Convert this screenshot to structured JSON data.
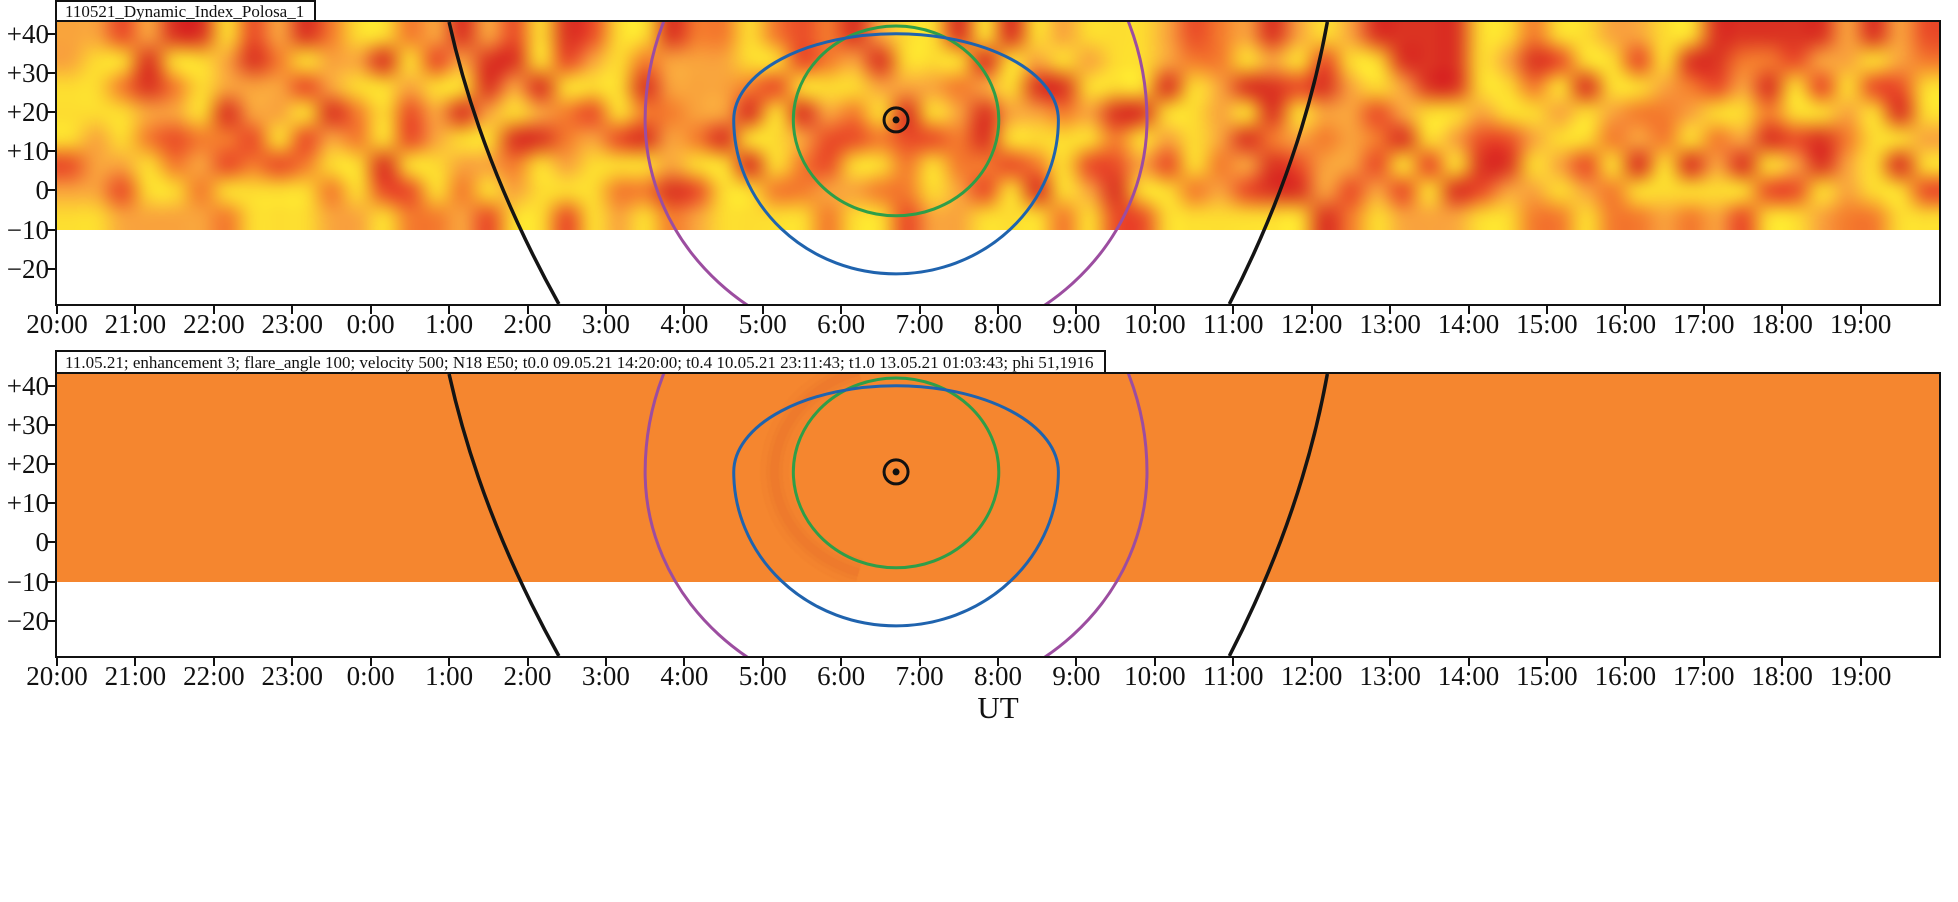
{
  "figure": {
    "panels": [
      {
        "id": "observed",
        "title": "110521_Dynamic_Index_Polosa_1"
      },
      {
        "id": "model",
        "title": "11.05.21; enhancement 3; flare_angle 100; velocity 500; N18 E50; t0.0 09.05.21 14:20:00; t0.4 10.05.21 23:11:43; t1.0 13.05.21 01:03:43; phi 51,1916"
      }
    ],
    "x_axis": {
      "label": "UT",
      "tick_labels": [
        "20:00",
        "21:00",
        "22:00",
        "23:00",
        "0:00",
        "1:00",
        "2:00",
        "3:00",
        "4:00",
        "5:00",
        "6:00",
        "7:00",
        "8:00",
        "9:00",
        "10:00",
        "11:00",
        "12:00",
        "13:00",
        "14:00",
        "15:00",
        "16:00",
        "17:00",
        "18:00",
        "19:00"
      ]
    },
    "y_axis": {
      "tick_labels": [
        "+40",
        "+30",
        "+20",
        "+10",
        "0",
        "−10",
        "−20"
      ],
      "tick_values": [
        40,
        30,
        20,
        10,
        0,
        -10,
        -20
      ]
    }
  },
  "chart_data": [
    {
      "type": "heatmap",
      "title": "110521_Dynamic_Index_Polosa_1",
      "xlabel": "UT",
      "x_ticks": [
        "20:00",
        "21:00",
        "22:00",
        "23:00",
        "0:00",
        "1:00",
        "2:00",
        "3:00",
        "4:00",
        "5:00",
        "6:00",
        "7:00",
        "8:00",
        "9:00",
        "10:00",
        "11:00",
        "12:00",
        "13:00",
        "14:00",
        "15:00",
        "16:00",
        "17:00",
        "18:00",
        "19:00"
      ],
      "x_span_hours": 24,
      "y_ticks": [
        40,
        30,
        20,
        10,
        0,
        -10,
        -20
      ],
      "y_range": [
        -29,
        43
      ],
      "colored_band_lat_range": [
        -10,
        43
      ],
      "values_note": "Mottled observed dynamic-index field; qualitative yellow→orange→red intensity, no colorbar shown; white below latitude −10",
      "palette": [
        "#FDDD30",
        "#F9A43C",
        "#F47B2D",
        "#EA4C28",
        "#DB3322"
      ],
      "overlays": {
        "center": {
          "hours_after_2000UT": 10.7,
          "ut": "6:40",
          "lat_deg": 18
        },
        "sun_symbol": {
          "outer_radius_px": 12,
          "dot_radius_px": 3.5
        },
        "rings": [
          {
            "name": "inner-ring-green",
            "color": "#2E9E49",
            "half_width_hours": 1.31,
            "half_height_up_deg": 24.0,
            "half_height_down_deg": 24.5
          },
          {
            "name": "middle-ring-blue",
            "color": "#1F63AE",
            "half_width_hours": 2.07,
            "half_height_up_deg": 22.0,
            "half_height_down_deg": 39.3
          },
          {
            "name": "outer-ring-purple",
            "color": "#9C4DA0",
            "half_width_hours": 3.2,
            "half_height_up_deg": 66.4,
            "half_height_down_deg": 58.7
          }
        ],
        "terminators": [
          {
            "name": "morning-terminator",
            "color": "#141414",
            "hours_top": 5.0,
            "hours_bottom": 6.4,
            "bow_hours": -0.3,
            "ut_at_top": "1:00",
            "ut_at_bottom": "2:25"
          },
          {
            "name": "evening-terminator",
            "color": "#141414",
            "hours_top": 16.2,
            "hours_bottom": 14.95,
            "bow_hours": 0.3,
            "ut_at_top": "12:10",
            "ut_at_bottom": "11:00"
          }
        ]
      },
      "render": {
        "seed": 1105,
        "cols": 72,
        "rows": 8,
        "thresholds": [
          [
            0.42,
            "#FDDD30"
          ],
          [
            0.6,
            "#F9A43C"
          ],
          [
            0.74,
            "#F47B2D"
          ],
          [
            0.86,
            "#EA4C28"
          ],
          [
            1.01,
            "#DB3322"
          ]
        ],
        "row_bias": [
          0.02,
          0.03,
          0.03,
          0.02,
          0,
          -0.02,
          -0.05,
          -0.08
        ],
        "hot_spots": [
          {
            "col": 33.5,
            "row": 2.5,
            "sig_col": 5.0,
            "sig_row": 3.0,
            "amp": 0.13
          },
          {
            "col": 65.5,
            "row": 0.8,
            "sig_col": 2.2,
            "sig_row": 1.4,
            "amp": 0.33
          },
          {
            "col": 47.0,
            "row": 1.0,
            "sig_col": 1.6,
            "sig_row": 1.1,
            "amp": 0.12
          },
          {
            "col": 7.0,
            "row": 1.5,
            "sig_col": 2.5,
            "sig_row": 1.5,
            "amp": 0.1
          },
          {
            "col": 56.0,
            "row": 5.0,
            "sig_col": 2.0,
            "sig_row": 1.3,
            "amp": 0.1
          },
          {
            "col": 27.0,
            "row": 5.5,
            "sig_col": 2.0,
            "sig_row": 1.2,
            "amp": 0.08
          },
          {
            "col": 20.0,
            "row": 6.5,
            "sig_col": 3.0,
            "sig_row": 1.2,
            "amp": -0.06
          }
        ]
      }
    },
    {
      "type": "heatmap",
      "title": "11.05.21; enhancement 3; flare_angle 100; velocity 500; N18 E50; t0.0 09.05.21 14:20:00; t0.4 10.05.21 23:11:43; t1.0 13.05.21 01:03:43; phi 51,1916",
      "xlabel": "UT",
      "x_ticks": [
        "20:00",
        "21:00",
        "22:00",
        "23:00",
        "0:00",
        "1:00",
        "2:00",
        "3:00",
        "4:00",
        "5:00",
        "6:00",
        "7:00",
        "8:00",
        "9:00",
        "10:00",
        "11:00",
        "12:00",
        "13:00",
        "14:00",
        "15:00",
        "16:00",
        "17:00",
        "18:00",
        "19:00"
      ],
      "x_span_hours": 24,
      "y_ticks": [
        40,
        30,
        20,
        10,
        0,
        -10,
        -20
      ],
      "y_range": [
        -29,
        43
      ],
      "colored_band_lat_range": [
        -10,
        43
      ],
      "values_note": "Uniform model field (flat orange) with a faint darker crescent just west of the green ring; white below latitude −10",
      "uniform_color": "#F5862F",
      "overlays": {
        "center": {
          "hours_after_2000UT": 10.7,
          "ut": "6:40",
          "lat_deg": 18
        },
        "sun_symbol": {
          "outer_radius_px": 12,
          "dot_radius_px": 3.5
        },
        "rings": [
          {
            "name": "inner-ring-green",
            "color": "#2E9E49",
            "half_width_hours": 1.31,
            "half_height_up_deg": 24.0,
            "half_height_down_deg": 24.5
          },
          {
            "name": "middle-ring-blue",
            "color": "#1F63AE",
            "half_width_hours": 2.07,
            "half_height_up_deg": 22.0,
            "half_height_down_deg": 39.3
          },
          {
            "name": "outer-ring-purple",
            "color": "#9C4DA0",
            "half_width_hours": 3.2,
            "half_height_up_deg": 66.4,
            "half_height_down_deg": 58.7
          }
        ],
        "terminators": [
          {
            "name": "morning-terminator",
            "color": "#141414",
            "hours_top": 5.0,
            "hours_bottom": 6.4,
            "bow_hours": -0.3,
            "ut_at_top": "1:00",
            "ut_at_bottom": "2:25"
          },
          {
            "name": "evening-terminator",
            "color": "#141414",
            "hours_top": 16.2,
            "hours_bottom": 14.95,
            "bow_hours": 0.3,
            "ut_at_top": "12:10",
            "ut_at_bottom": "11:00"
          }
        ]
      },
      "render": {
        "crescent": {
          "center_offset": 0,
          "rx_hours": 1.55,
          "ry_deg": 27,
          "start_frac_pi": 0.6,
          "end_frac_pi": 1.4,
          "color": "#E66A28"
        }
      }
    }
  ]
}
